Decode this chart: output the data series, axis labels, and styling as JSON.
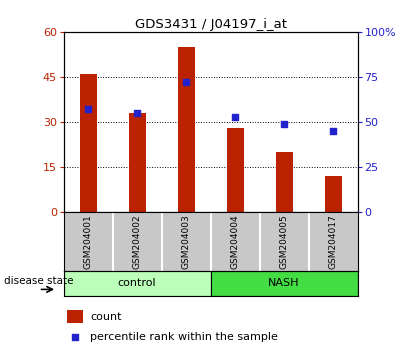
{
  "title": "GDS3431 / J04197_i_at",
  "samples": [
    "GSM204001",
    "GSM204002",
    "GSM204003",
    "GSM204004",
    "GSM204005",
    "GSM204017"
  ],
  "counts": [
    46,
    33,
    55,
    28,
    20,
    12
  ],
  "percentile_ranks": [
    57,
    55,
    72,
    53,
    49,
    45
  ],
  "groups": [
    "control",
    "control",
    "control",
    "NASH",
    "NASH",
    "NASH"
  ],
  "left_ylim": [
    0,
    60
  ],
  "right_ylim": [
    0,
    100
  ],
  "left_yticks": [
    0,
    15,
    30,
    45,
    60
  ],
  "right_yticks": [
    0,
    25,
    50,
    75,
    100
  ],
  "right_yticklabels": [
    "0",
    "25",
    "50",
    "75",
    "100%"
  ],
  "bar_color": "#bb2200",
  "dot_color": "#2222cc",
  "control_color": "#bbffbb",
  "nash_color": "#44dd44",
  "label_bg_color": "#c8c8c8",
  "group_label": "disease state",
  "legend_count_label": "count",
  "legend_pct_label": "percentile rank within the sample",
  "bar_width": 0.35
}
